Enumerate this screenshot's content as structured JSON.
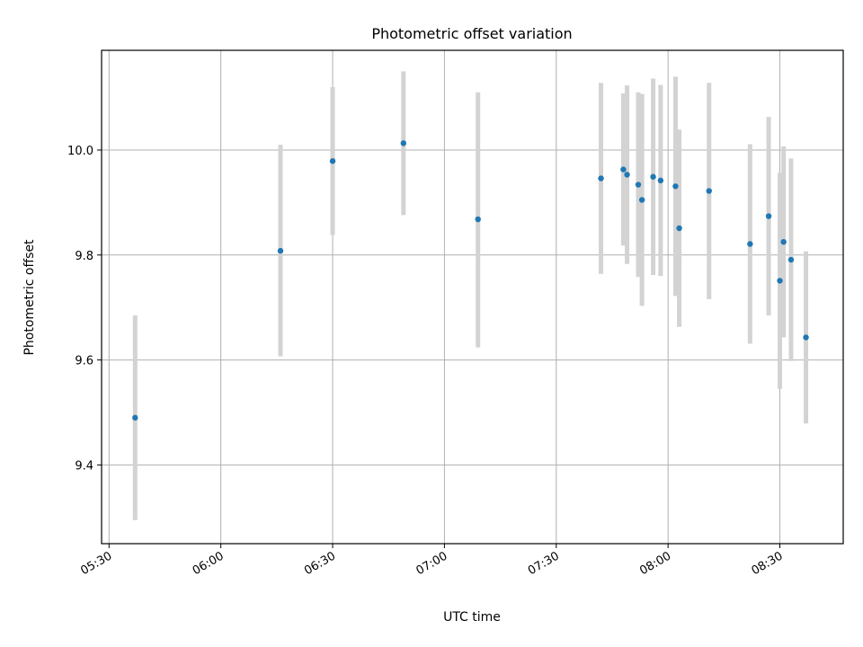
{
  "chart_data": {
    "type": "scatter",
    "title": "Photometric offset variation",
    "xlabel": "UTC time",
    "ylabel": "Photometric offset",
    "xlim": [
      "05:28",
      "08:47"
    ],
    "ylim": [
      9.25,
      10.19
    ],
    "x_ticks": [
      "05:30",
      "06:00",
      "06:30",
      "07:00",
      "07:30",
      "08:00",
      "08:30"
    ],
    "y_ticks": [
      9.4,
      9.6,
      9.8,
      10.0
    ],
    "grid": true,
    "colors": {
      "point": "#1f77b4",
      "errorbar": "#d3d3d3",
      "grid": "#b0b0b0"
    },
    "points": [
      {
        "x": "05:37",
        "y": 9.49,
        "y_low": 9.295,
        "y_high": 9.685
      },
      {
        "x": "06:16",
        "y": 9.808,
        "y_low": 9.607,
        "y_high": 10.01
      },
      {
        "x": "06:30",
        "y": 9.979,
        "y_low": 9.838,
        "y_high": 10.12
      },
      {
        "x": "06:49",
        "y": 10.013,
        "y_low": 9.876,
        "y_high": 10.15
      },
      {
        "x": "07:09",
        "y": 9.868,
        "y_low": 9.624,
        "y_high": 10.11
      },
      {
        "x": "07:42",
        "y": 9.946,
        "y_low": 9.764,
        "y_high": 10.128
      },
      {
        "x": "07:48",
        "y": 9.963,
        "y_low": 9.818,
        "y_high": 10.108
      },
      {
        "x": "07:49",
        "y": 9.953,
        "y_low": 9.783,
        "y_high": 10.123
      },
      {
        "x": "07:52",
        "y": 9.934,
        "y_low": 9.758,
        "y_high": 10.11
      },
      {
        "x": "07:53",
        "y": 9.905,
        "y_low": 9.703,
        "y_high": 10.107
      },
      {
        "x": "07:56",
        "y": 9.949,
        "y_low": 9.762,
        "y_high": 10.136
      },
      {
        "x": "07:58",
        "y": 9.942,
        "y_low": 9.76,
        "y_high": 10.124
      },
      {
        "x": "08:02",
        "y": 9.931,
        "y_low": 9.722,
        "y_high": 10.14
      },
      {
        "x": "08:03",
        "y": 9.851,
        "y_low": 9.663,
        "y_high": 10.039
      },
      {
        "x": "08:11",
        "y": 9.922,
        "y_low": 9.716,
        "y_high": 10.128
      },
      {
        "x": "08:22",
        "y": 9.821,
        "y_low": 9.631,
        "y_high": 10.011
      },
      {
        "x": "08:27",
        "y": 9.874,
        "y_low": 9.685,
        "y_high": 10.063
      },
      {
        "x": "08:30",
        "y": 9.751,
        "y_low": 9.545,
        "y_high": 9.957
      },
      {
        "x": "08:31",
        "y": 9.825,
        "y_low": 9.643,
        "y_high": 10.007
      },
      {
        "x": "08:33",
        "y": 9.791,
        "y_low": 9.598,
        "y_high": 9.984
      },
      {
        "x": "08:37",
        "y": 9.643,
        "y_low": 9.479,
        "y_high": 9.807
      }
    ]
  }
}
